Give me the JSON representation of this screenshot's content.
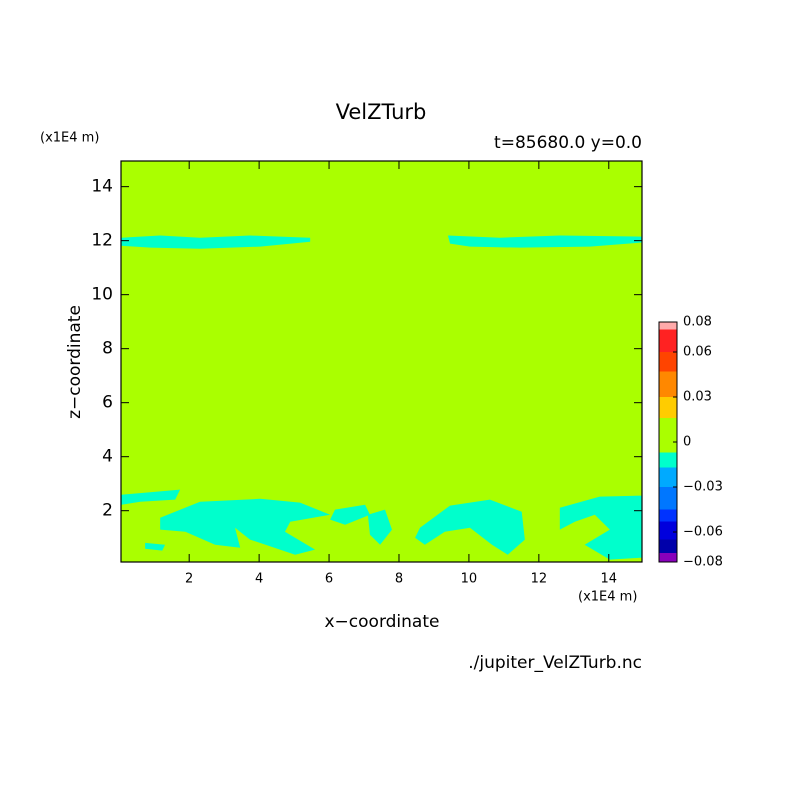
{
  "chart_data": {
    "type": "filled-contour",
    "title": "VelZTurb",
    "subtitle": "t=85680.0 y=0.0",
    "x_label": "x−coordinate",
    "y_label": "z−coordinate",
    "x_unit": "(x1E4 m)",
    "y_unit": "(x1E4 m)",
    "source": "./jupiter_VelZTurb.nc",
    "xlim": [
      0.05,
      14.95
    ],
    "ylim": [
      0.1,
      14.95
    ],
    "xticks": [
      2,
      4,
      6,
      8,
      10,
      12,
      14
    ],
    "yticks": [
      2,
      4,
      6,
      8,
      10,
      12,
      14
    ],
    "background_color": "#aaff00",
    "regions": [
      {
        "color": "#00ffcc",
        "x": [
          0.06,
          1.17,
          2.31,
          3.74,
          5.46,
          5.46,
          4.03,
          2.31,
          0.89,
          0.06
        ],
        "y": [
          12.11,
          12.19,
          12.11,
          12.19,
          12.11,
          11.96,
          11.78,
          11.7,
          11.74,
          11.81
        ]
      },
      {
        "color": "#00ffcc",
        "x": [
          9.4,
          10.89,
          12.6,
          14.94,
          14.94,
          13.46,
          11.46,
          10.03,
          9.46
        ],
        "y": [
          12.19,
          12.11,
          12.19,
          12.15,
          11.93,
          11.78,
          11.74,
          11.78,
          11.89
        ]
      },
      {
        "color": "#00ffcc",
        "x": [
          0.06,
          1.74,
          1.6,
          0.6,
          0.06
        ],
        "y": [
          2.59,
          2.78,
          2.41,
          2.33,
          2.22
        ]
      },
      {
        "color": "#00ffcc",
        "x": [
          1.17,
          2.31,
          4.03,
          5.17,
          6.03,
          4.89,
          4.74,
          5.6,
          5.03,
          3.74,
          3.31,
          3.46,
          2.74,
          1.89,
          1.17
        ],
        "y": [
          1.74,
          2.33,
          2.44,
          2.3,
          1.85,
          1.59,
          1.22,
          0.56,
          0.37,
          0.93,
          1.37,
          0.63,
          0.74,
          1.22,
          1.3
        ]
      },
      {
        "color": "#00ffcc",
        "x": [
          6.17,
          7.03,
          7.17,
          6.46,
          6.03
        ],
        "y": [
          2.04,
          2.22,
          1.85,
          1.48,
          1.67
        ]
      },
      {
        "color": "#00ffcc",
        "x": [
          7.11,
          7.6,
          7.8,
          7.46,
          7.17
        ],
        "y": [
          1.85,
          2.04,
          1.3,
          0.74,
          1.11
        ]
      },
      {
        "color": "#00ffcc",
        "x": [
          8.6,
          9.46,
          10.6,
          11.51,
          11.6,
          11.11,
          10.66,
          10.03,
          9.31,
          8.74,
          8.46
        ],
        "y": [
          1.37,
          2.19,
          2.41,
          1.96,
          0.93,
          0.37,
          0.74,
          1.37,
          1.22,
          0.74,
          1.0
        ]
      },
      {
        "color": "#00ffcc",
        "x": [
          12.6,
          13.74,
          14.94,
          14.94,
          14.03,
          13.31,
          14.03,
          13.6,
          13.03,
          12.6
        ],
        "y": [
          2.11,
          2.52,
          2.56,
          0.26,
          0.19,
          0.74,
          1.3,
          1.85,
          1.59,
          1.3
        ]
      },
      {
        "color": "#00ffcc",
        "x": [
          0.74,
          1.31,
          1.23,
          0.74
        ],
        "y": [
          0.81,
          0.74,
          0.52,
          0.59
        ]
      }
    ],
    "colorbar": {
      "lim": [
        -0.08,
        0.08
      ],
      "levels": [
        -0.08,
        -0.074,
        -0.065,
        -0.053,
        -0.045,
        -0.03,
        -0.017,
        -0.007,
        0.016,
        0.03,
        0.047,
        0.06,
        0.075,
        0.08
      ],
      "colors": [
        "#8800bb",
        "#0000aa",
        "#0000dd",
        "#0033ff",
        "#0077ff",
        "#00aaff",
        "#00ffcc",
        "#aaff00",
        "#ffcc00",
        "#ff8800",
        "#ff4400",
        "#ff2222",
        "#ffaaaa"
      ],
      "ticks": [
        0.08,
        0.06,
        0.03,
        0,
        {
          "value": -0.03,
          "label": "−0.03"
        },
        {
          "value": -0.06,
          "label": "−0.06"
        },
        {
          "value": -0.08,
          "label": "−0.08"
        }
      ]
    }
  }
}
